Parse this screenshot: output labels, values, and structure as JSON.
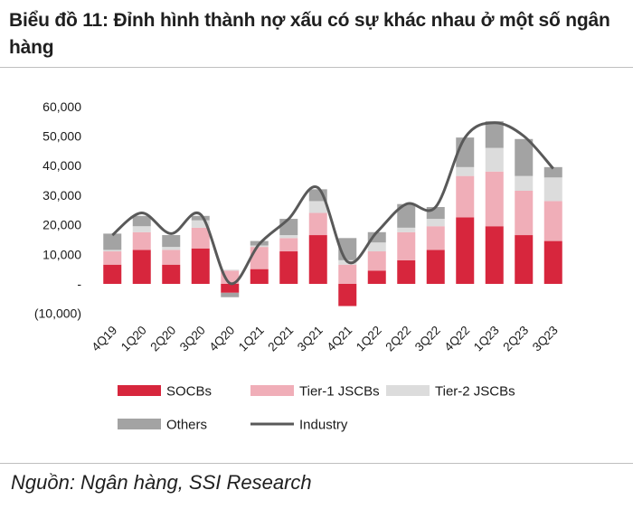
{
  "title": "Biểu đồ 11: Đỉnh hình thành nợ xấu có sự khác nhau ở một số ngân hàng",
  "source": "Nguồn: Ngân hàng, SSI Research",
  "colors": {
    "SOCBs": "#d7263d",
    "Tier-1 JSCBs": "#f0aeb8",
    "Tier-2 JSCBs": "#dcdcdc",
    "Others": "#a3a3a3",
    "Industry": "#595959"
  },
  "chart_data": {
    "type": "bar",
    "stacked": true,
    "categories": [
      "4Q19",
      "1Q20",
      "2Q20",
      "3Q20",
      "4Q20",
      "1Q21",
      "2Q21",
      "3Q21",
      "4Q21",
      "1Q22",
      "2Q22",
      "3Q22",
      "4Q22",
      "1Q23",
      "2Q23",
      "3Q23"
    ],
    "ylim": [
      -10000,
      60000
    ],
    "yticks": [
      -10000,
      0,
      10000,
      20000,
      30000,
      40000,
      50000,
      60000
    ],
    "ytick_labels": [
      "(10,000)",
      "-",
      "10,000",
      "20,000",
      "30,000",
      "40,000",
      "50,000",
      "60,000"
    ],
    "series": [
      {
        "name": "SOCBs",
        "kind": "bar",
        "values": [
          6500,
          11500,
          6500,
          12000,
          -3000,
          5000,
          11000,
          16500,
          -7500,
          4500,
          8000,
          11500,
          22500,
          19500,
          16500,
          14500
        ]
      },
      {
        "name": "Tier-1 JSCBs",
        "kind": "bar",
        "values": [
          4500,
          6000,
          5000,
          7000,
          4500,
          7500,
          4500,
          7500,
          6500,
          6500,
          9500,
          8000,
          14000,
          18500,
          15000,
          13500
        ]
      },
      {
        "name": "Tier-2 JSCBs",
        "kind": "bar",
        "values": [
          500,
          2000,
          1000,
          2500,
          300,
          500,
          1000,
          4000,
          1500,
          3000,
          1500,
          2500,
          3000,
          8000,
          5000,
          8000
        ]
      },
      {
        "name": "Others",
        "kind": "bar",
        "values": [
          5500,
          3500,
          4000,
          1500,
          -1500,
          1500,
          5500,
          4000,
          7500,
          3500,
          8000,
          4000,
          10000,
          9000,
          12500,
          3500
        ]
      },
      {
        "name": "Industry",
        "kind": "line",
        "values": [
          16500,
          24000,
          17000,
          23500,
          200,
          13500,
          22000,
          32500,
          7500,
          17500,
          27000,
          26000,
          49500,
          54500,
          50000,
          39000
        ]
      }
    ],
    "legend": [
      "SOCBs",
      "Tier-1 JSCBs",
      "Tier-2 JSCBs",
      "Others",
      "Industry"
    ],
    "legend_position": "bottom",
    "grid": false
  }
}
